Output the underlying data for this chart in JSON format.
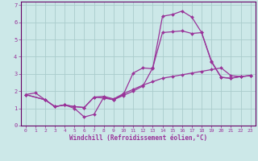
{
  "xlabel": "Windchill (Refroidissement éolien,°C)",
  "bg_color": "#cce8e8",
  "grid_color": "#aacccc",
  "line_color": "#993399",
  "spine_color": "#660066",
  "xlim": [
    -0.5,
    23.5
  ],
  "ylim": [
    0,
    7.2
  ],
  "xticks": [
    0,
    1,
    2,
    3,
    4,
    5,
    6,
    7,
    8,
    9,
    10,
    11,
    12,
    13,
    14,
    15,
    16,
    17,
    18,
    19,
    20,
    21,
    22,
    23
  ],
  "yticks": [
    0,
    1,
    2,
    3,
    4,
    5,
    6,
    7
  ],
  "line1_x": [
    0,
    1,
    2,
    3,
    4,
    5,
    6,
    7,
    8,
    9,
    10,
    11,
    12,
    13,
    14,
    15,
    16,
    17,
    18,
    19,
    20,
    21,
    22,
    23
  ],
  "line1_y": [
    1.8,
    1.9,
    1.5,
    1.1,
    1.2,
    1.0,
    0.5,
    0.65,
    1.65,
    1.5,
    1.8,
    3.05,
    3.35,
    3.3,
    6.35,
    6.45,
    6.65,
    6.3,
    5.4,
    3.75,
    2.8,
    2.75,
    2.85,
    2.9
  ],
  "line2_x": [
    0,
    2,
    3,
    4,
    5,
    6,
    7,
    8,
    9,
    10,
    11,
    12,
    13,
    14,
    15,
    16,
    17,
    18,
    19,
    20,
    21,
    22,
    23
  ],
  "line2_y": [
    1.8,
    1.5,
    1.1,
    1.2,
    1.1,
    1.05,
    1.65,
    1.7,
    1.55,
    1.85,
    2.1,
    2.35,
    2.55,
    2.75,
    2.85,
    2.95,
    3.05,
    3.15,
    3.25,
    3.35,
    2.9,
    2.85,
    2.9
  ],
  "line3_x": [
    0,
    2,
    3,
    4,
    5,
    6,
    7,
    8,
    9,
    10,
    11,
    12,
    13,
    14,
    15,
    16,
    17,
    18,
    19,
    20,
    21,
    22,
    23
  ],
  "line3_y": [
    1.8,
    1.5,
    1.1,
    1.2,
    1.1,
    1.05,
    1.65,
    1.6,
    1.5,
    1.75,
    2.0,
    2.3,
    3.35,
    5.4,
    5.45,
    5.5,
    5.35,
    5.4,
    3.7,
    2.8,
    2.75,
    2.85,
    2.9
  ]
}
